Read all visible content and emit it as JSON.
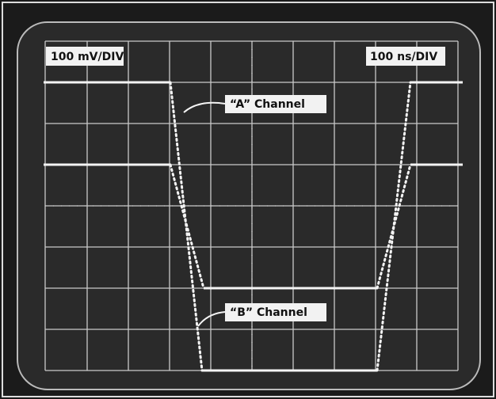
{
  "labels": {
    "vertical_scale": "100 mV/DIV",
    "time_scale": "100 ns/DIV",
    "channel_a": "“A” Channel",
    "channel_b": "“B” Channel"
  }
}
